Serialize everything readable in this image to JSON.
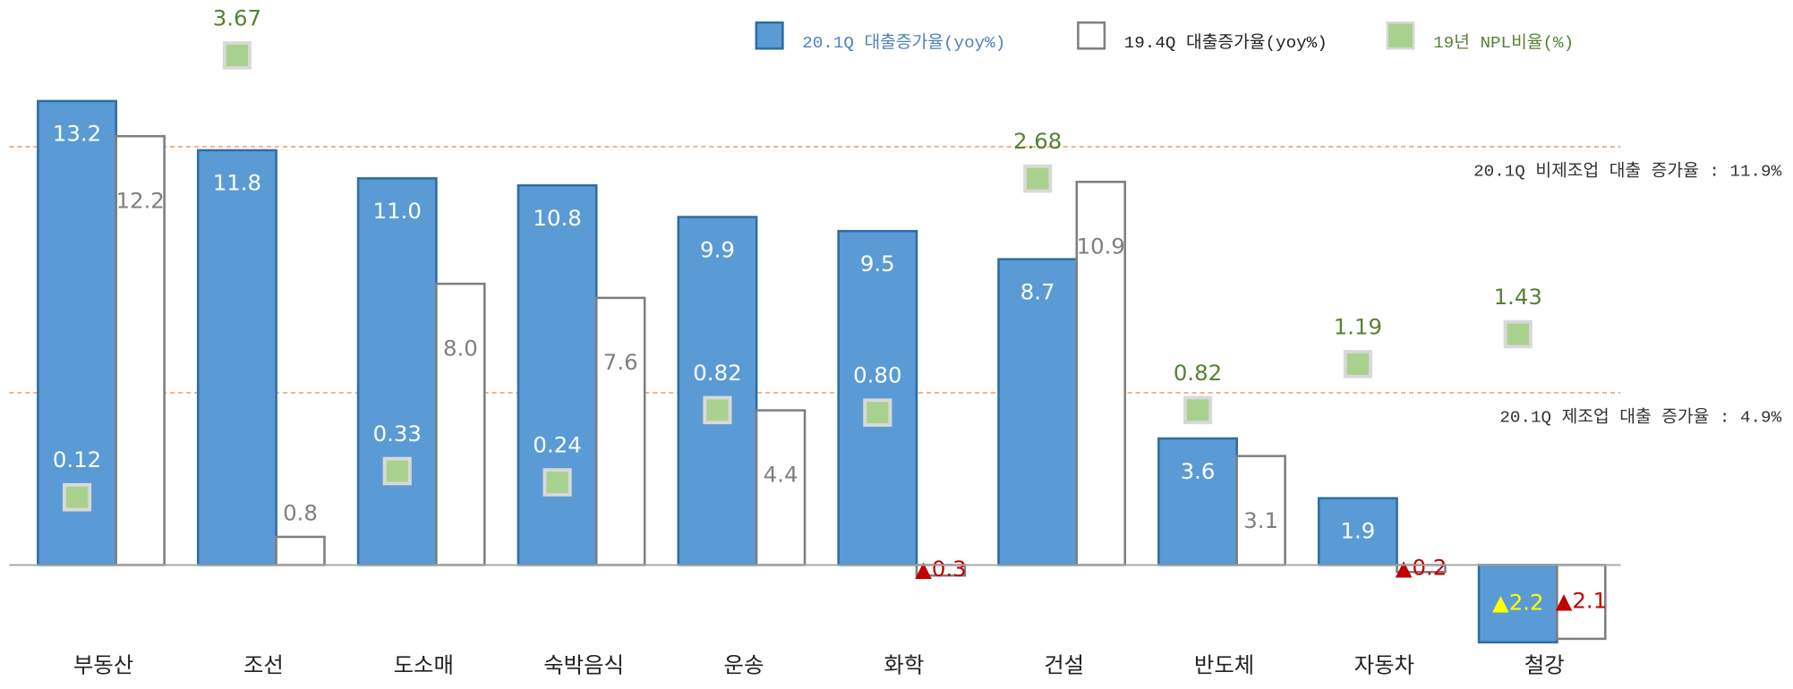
{
  "chart_data": {
    "type": "bar",
    "categories": [
      "부동산",
      "조선",
      "도소매",
      "숙박음식",
      "운송",
      "화학",
      "건설",
      "반도체",
      "자동차",
      "철강"
    ],
    "series": [
      {
        "name": "20.1Q 대출증가율(yoy%)",
        "color": "#5b9bd5",
        "values": [
          13.2,
          11.8,
          11.0,
          10.8,
          9.9,
          9.5,
          8.7,
          3.6,
          1.9,
          -2.2
        ],
        "value_labels": [
          "13.2",
          "11.8",
          "11.0",
          "10.8",
          "9.9",
          "9.5",
          "8.7",
          "3.6",
          "1.9",
          "▲2.2"
        ]
      },
      {
        "name": "19.4Q 대출증가율(yoy%)",
        "color": "#ffffff",
        "values": [
          12.2,
          0.8,
          8.0,
          7.6,
          4.4,
          -0.3,
          10.9,
          3.1,
          -0.2,
          -2.1
        ],
        "value_labels": [
          "12.2",
          "0.8",
          "8.0",
          "7.6",
          "4.4",
          "▲0.3",
          "10.9",
          "3.1",
          "▲0.2",
          "▲2.1"
        ]
      },
      {
        "name": "19년 NPL비율(%)",
        "color": "#a9d18e",
        "axis": "y2",
        "values": [
          0.12,
          3.67,
          0.33,
          0.24,
          0.82,
          0.8,
          2.68,
          0.82,
          1.19,
          1.43
        ],
        "value_labels": [
          "0.12",
          "3.67",
          "0.33",
          "0.24",
          "0.82",
          "0.80",
          "2.68",
          "0.82",
          "1.19",
          "1.43"
        ]
      }
    ],
    "ylim": [
      -2.5,
      14.5
    ],
    "y2lim": [
      -1.13,
      3.67
    ],
    "annotations": [
      {
        "label": "20.1Q 비제조업 대출 증가율 : 11.9%",
        "value": 11.9
      },
      {
        "label": "20.1Q 제조업 대출 증가율 : 4.9%",
        "value": 4.9
      }
    ]
  }
}
